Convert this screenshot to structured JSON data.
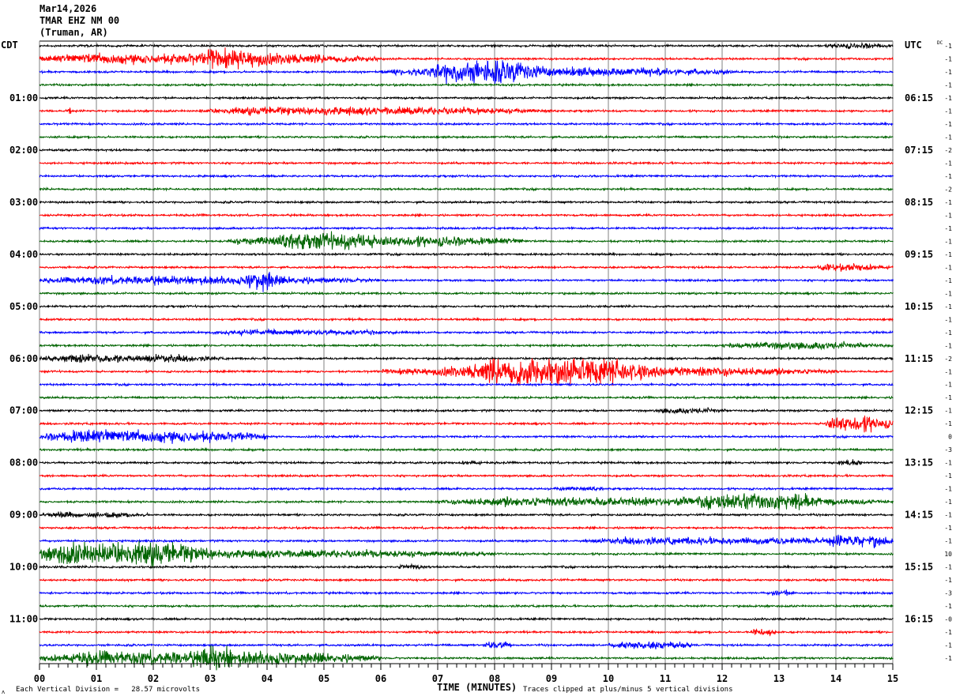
{
  "header": {
    "date": "Mar14,2026",
    "station": "TMAR EHZ NM 00",
    "location": "(Truman, AR)"
  },
  "left_timezone": "CDT",
  "right_timezone": "UTC",
  "dc_label": "DC",
  "footer": {
    "scale_text": "Each Vertical Division =   28.57 microvolts",
    "xlabel": "TIME (MINUTES)",
    "clip_note": "Traces clipped at plus/minus 5 vertical divisions",
    "corner_mark": "ʌ"
  },
  "chart_data": {
    "type": "line",
    "subtype": "helicorder",
    "xlabel": "TIME (MINUTES)",
    "xlim": [
      0,
      15
    ],
    "x_ticks": [
      "00",
      "01",
      "02",
      "03",
      "04",
      "05",
      "06",
      "07",
      "08",
      "09",
      "10",
      "11",
      "12",
      "13",
      "14",
      "15"
    ],
    "grid": "vertical lines each minute",
    "trace_count": 48,
    "trace_colors": [
      "#000000",
      "#ff0000",
      "#0000ff",
      "#006400"
    ],
    "left_hour_labels": [
      "",
      "01:00",
      "02:00",
      "03:00",
      "04:00",
      "05:00",
      "06:00",
      "07:00",
      "08:00",
      "09:00",
      "10:00",
      "11:00"
    ],
    "right_hour_labels": [
      "",
      "06:15",
      "07:15",
      "08:15",
      "09:15",
      "10:15",
      "11:15",
      "12:15",
      "13:15",
      "14:15",
      "15:15",
      "16:15"
    ],
    "dc_offsets": [
      "-1",
      "-1",
      "-1",
      "-1",
      "-1",
      "-1",
      "-1",
      "-1",
      "-2",
      "-1",
      "-1",
      "-2",
      "-1",
      "-1",
      "-1",
      "-1",
      "-1",
      "-1",
      "-1",
      "-1",
      "-1",
      "-1",
      "-1",
      "-1",
      "-2",
      "-1",
      "-1",
      "-1",
      "-1",
      "-1",
      "0",
      "-3",
      "-1",
      "-1",
      "-1",
      "-1",
      "-1",
      "-1",
      "-1",
      "10",
      "-1",
      "-1",
      "-3",
      "-1",
      "-0",
      "-1",
      "-1",
      "-1"
    ],
    "clip_divisions": 5,
    "microvolts_per_division": 28.57,
    "activity_units": "vertical divisions (approx. peak amplitude)",
    "activity": [
      {
        "trace": 0,
        "start": 13.8,
        "end": 15,
        "amp": 0.6
      },
      {
        "trace": 1,
        "start": 0,
        "end": 6,
        "amp": 1.2
      },
      {
        "trace": 1,
        "start": 2.8,
        "end": 4.2,
        "amp": 2.2
      },
      {
        "trace": 2,
        "start": 6,
        "end": 12.2,
        "amp": 1.0
      },
      {
        "trace": 2,
        "start": 6.8,
        "end": 9,
        "amp": 2.4
      },
      {
        "trace": 5,
        "start": 2.8,
        "end": 9,
        "amp": 0.9
      },
      {
        "trace": 5,
        "start": 0.5,
        "end": 0.55,
        "amp": 2.0
      },
      {
        "trace": 15,
        "start": 3.3,
        "end": 8.5,
        "amp": 1.2
      },
      {
        "trace": 15,
        "start": 4,
        "end": 6.3,
        "amp": 1.8
      },
      {
        "trace": 17,
        "start": 13.6,
        "end": 15,
        "amp": 0.8
      },
      {
        "trace": 18,
        "start": 0,
        "end": 6,
        "amp": 0.9
      },
      {
        "trace": 18,
        "start": 3.6,
        "end": 4.2,
        "amp": 2.2
      },
      {
        "trace": 22,
        "start": 3,
        "end": 6.5,
        "amp": 0.6
      },
      {
        "trace": 23,
        "start": 12,
        "end": 15,
        "amp": 0.8
      },
      {
        "trace": 24,
        "start": 0,
        "end": 3.2,
        "amp": 0.9
      },
      {
        "trace": 25,
        "start": 6,
        "end": 14,
        "amp": 1.1
      },
      {
        "trace": 25,
        "start": 7.5,
        "end": 11,
        "amp": 3.0
      },
      {
        "trace": 28,
        "start": 10.8,
        "end": 12.2,
        "amp": 0.6
      },
      {
        "trace": 29,
        "start": 13.8,
        "end": 15,
        "amp": 1.8
      },
      {
        "trace": 30,
        "start": 0,
        "end": 4,
        "amp": 1.4
      },
      {
        "trace": 32,
        "start": 7.4,
        "end": 7.8,
        "amp": 0.6
      },
      {
        "trace": 32,
        "start": 14,
        "end": 14.5,
        "amp": 0.7
      },
      {
        "trace": 34,
        "start": 9,
        "end": 10,
        "amp": 0.5
      },
      {
        "trace": 35,
        "start": 7,
        "end": 15,
        "amp": 1.0
      },
      {
        "trace": 35,
        "start": 11.5,
        "end": 14,
        "amp": 1.8
      },
      {
        "trace": 36,
        "start": 0,
        "end": 2,
        "amp": 0.6
      },
      {
        "trace": 38,
        "start": 9.5,
        "end": 15,
        "amp": 0.8
      },
      {
        "trace": 38,
        "start": 13.8,
        "end": 15,
        "amp": 1.4
      },
      {
        "trace": 39,
        "start": 0,
        "end": 8,
        "amp": 0.9
      },
      {
        "trace": 39,
        "start": 0,
        "end": 3.2,
        "amp": 2.6
      },
      {
        "trace": 40,
        "start": 6.3,
        "end": 6.8,
        "amp": 0.6
      },
      {
        "trace": 42,
        "start": 12.8,
        "end": 13.3,
        "amp": 0.6
      },
      {
        "trace": 45,
        "start": 12.5,
        "end": 13,
        "amp": 0.8
      },
      {
        "trace": 46,
        "start": 7.8,
        "end": 8.3,
        "amp": 0.9
      },
      {
        "trace": 46,
        "start": 10,
        "end": 11.5,
        "amp": 0.9
      },
      {
        "trace": 47,
        "start": 0,
        "end": 6,
        "amp": 1.5
      },
      {
        "trace": 47,
        "start": 2.8,
        "end": 3.5,
        "amp": 2.6
      }
    ]
  }
}
